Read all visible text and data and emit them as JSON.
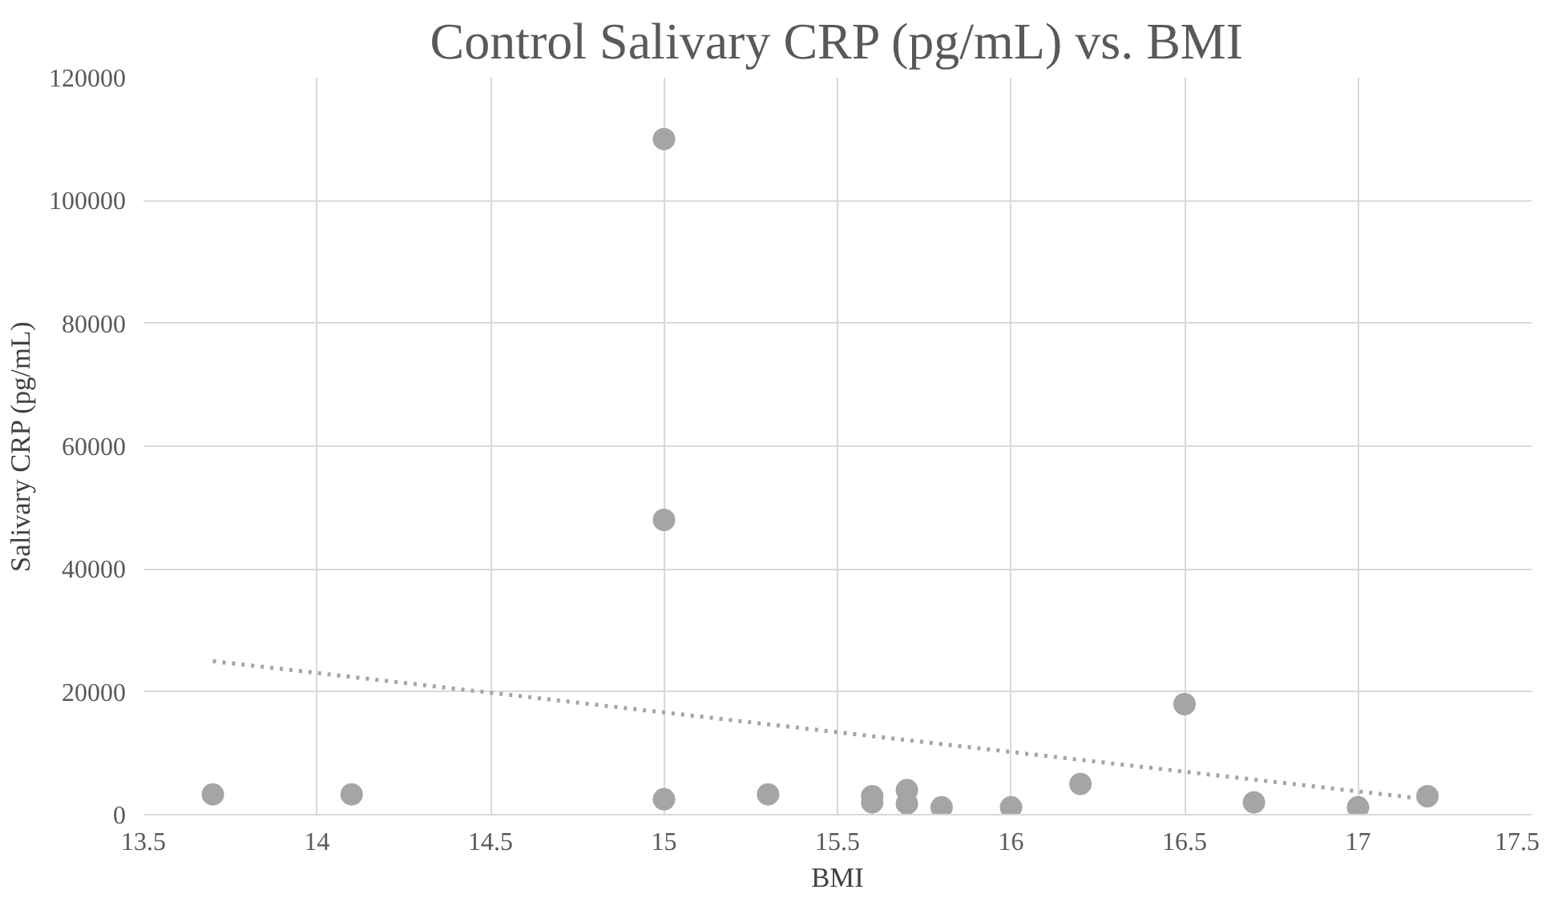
{
  "chart_data": {
    "type": "scatter",
    "title": "Control Salivary CRP (pg/mL) vs. BMI",
    "xlabel": "BMI",
    "ylabel": "Salivary CRP (pg/mL)",
    "xlim": [
      13.5,
      17.5
    ],
    "xticks": [
      13.5,
      14,
      14.5,
      15,
      15.5,
      16,
      16.5,
      17,
      17.5
    ],
    "ylim": [
      0,
      120000
    ],
    "yticks": [
      0,
      20000,
      40000,
      60000,
      80000,
      100000,
      120000
    ],
    "grid": true,
    "series": [
      {
        "marker": "circle",
        "color": "#a5a5a5",
        "x": [
          13.7,
          14.1,
          15,
          15,
          15,
          15.3,
          15.6,
          15.6,
          15.7,
          15.7,
          15.8,
          16,
          16.2,
          16.5,
          16.7,
          17,
          17.2
        ],
        "values": [
          3300,
          3300,
          110000,
          48000,
          2500,
          3300,
          2000,
          3000,
          4000,
          1800,
          1200,
          1200,
          5000,
          18000,
          2000,
          1200,
          3000
        ]
      },
      {
        "type": "line",
        "marker": "none",
        "color": "#a5a5a5",
        "line_style": "dotted",
        "x": [
          13.7,
          17.2
        ],
        "values": [
          25000,
          2500
        ]
      }
    ]
  }
}
